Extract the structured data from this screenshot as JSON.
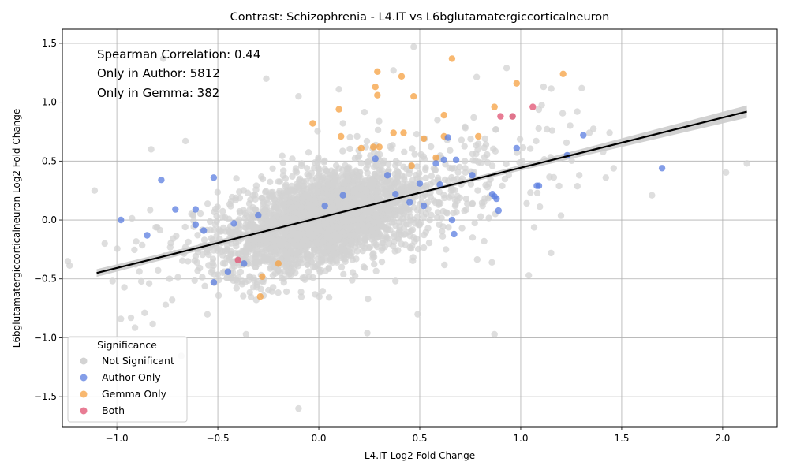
{
  "chart_data": {
    "type": "scatter",
    "title": "Contrast: Schizophrenia - L4.IT vs L6bglutamatergiccorticalneuron",
    "xlabel": "L4.IT Log2 Fold Change",
    "ylabel": "L6bglutamatergiccorticalneuron Log2 Fold Change",
    "xlim": [
      -1.27,
      2.27
    ],
    "ylim": [
      -1.76,
      1.62
    ],
    "x_ticks": [
      -1.0,
      -0.5,
      0.0,
      0.5,
      1.0,
      1.5,
      2.0
    ],
    "y_ticks": [
      -1.5,
      -1.0,
      -0.5,
      0.0,
      0.5,
      1.0,
      1.5
    ],
    "x_tick_labels": [
      "−1.0",
      "−0.5",
      "0.0",
      "0.5",
      "1.0",
      "1.5",
      "2.0"
    ],
    "y_tick_labels": [
      "−1.5",
      "−1.0",
      "−0.5",
      "0.0",
      "0.5",
      "1.0",
      "1.5"
    ],
    "grid": true,
    "annotations": [
      "Spearman Correlation: 0.44",
      "Only in Author: 5812",
      "Only in Gemma: 382"
    ],
    "legend": {
      "title": "Significance",
      "placement": "lower-left",
      "entries": [
        {
          "label": "Not Significant",
          "color": "#d3d3d3"
        },
        {
          "label": "Author Only",
          "color": "#5b7de0"
        },
        {
          "label": "Gemma Only",
          "color": "#f5a040"
        },
        {
          "label": "Both",
          "color": "#e05070"
        }
      ]
    },
    "regression": {
      "x": [
        -1.1,
        2.12
      ],
      "y": [
        -0.45,
        0.92
      ],
      "ci_halfwidth_ends": [
        0.02,
        0.04
      ],
      "color": "#000000",
      "band_color": "#cccccc"
    },
    "series": [
      {
        "name": "Gemma Only",
        "color": "#f5a040",
        "points": [
          [
            0.29,
            1.26
          ],
          [
            0.66,
            1.37
          ],
          [
            0.41,
            1.22
          ],
          [
            0.28,
            1.13
          ],
          [
            0.29,
            1.06
          ],
          [
            0.47,
            1.05
          ],
          [
            0.98,
            1.16
          ],
          [
            1.21,
            1.24
          ],
          [
            0.1,
            0.94
          ],
          [
            -0.03,
            0.82
          ],
          [
            0.11,
            0.71
          ],
          [
            0.37,
            0.74
          ],
          [
            0.42,
            0.74
          ],
          [
            0.52,
            0.69
          ],
          [
            0.62,
            0.89
          ],
          [
            0.62,
            0.71
          ],
          [
            0.79,
            0.71
          ],
          [
            0.87,
            0.96
          ],
          [
            0.21,
            0.61
          ],
          [
            0.27,
            0.62
          ],
          [
            0.3,
            0.62
          ],
          [
            0.58,
            0.53
          ],
          [
            0.46,
            0.46
          ],
          [
            -0.29,
            -0.65
          ],
          [
            -0.28,
            -0.48
          ],
          [
            -0.2,
            -0.37
          ]
        ]
      },
      {
        "name": "Author Only",
        "color": "#5b7de0",
        "points": [
          [
            -0.98,
            0.0
          ],
          [
            -0.85,
            -0.13
          ],
          [
            -0.78,
            0.34
          ],
          [
            -0.71,
            0.09
          ],
          [
            -0.61,
            0.09
          ],
          [
            -0.61,
            -0.04
          ],
          [
            -0.57,
            -0.09
          ],
          [
            -0.52,
            0.36
          ],
          [
            -0.52,
            -0.53
          ],
          [
            -0.45,
            -0.44
          ],
          [
            -0.42,
            -0.03
          ],
          [
            -0.37,
            -0.37
          ],
          [
            -0.3,
            0.04
          ],
          [
            0.34,
            0.38
          ],
          [
            0.38,
            0.22
          ],
          [
            0.45,
            0.15
          ],
          [
            0.5,
            0.31
          ],
          [
            0.52,
            0.12
          ],
          [
            0.62,
            0.51
          ],
          [
            0.64,
            0.7
          ],
          [
            0.66,
            0.0
          ],
          [
            0.67,
            -0.12
          ],
          [
            0.68,
            0.51
          ],
          [
            0.76,
            0.38
          ],
          [
            0.86,
            0.22
          ],
          [
            0.87,
            0.2
          ],
          [
            0.88,
            0.18
          ],
          [
            0.89,
            0.08
          ],
          [
            0.98,
            0.61
          ],
          [
            1.08,
            0.29
          ],
          [
            1.09,
            0.29
          ],
          [
            1.23,
            0.55
          ],
          [
            1.31,
            0.72
          ],
          [
            1.7,
            0.44
          ],
          [
            0.28,
            0.52
          ],
          [
            0.12,
            0.21
          ],
          [
            0.03,
            0.12
          ],
          [
            0.58,
            0.48
          ],
          [
            0.6,
            0.3
          ]
        ]
      },
      {
        "name": "Both",
        "color": "#e05070",
        "points": [
          [
            0.9,
            0.88
          ],
          [
            0.96,
            0.88
          ],
          [
            1.06,
            0.96
          ],
          [
            -0.4,
            -0.34
          ]
        ]
      }
    ]
  }
}
